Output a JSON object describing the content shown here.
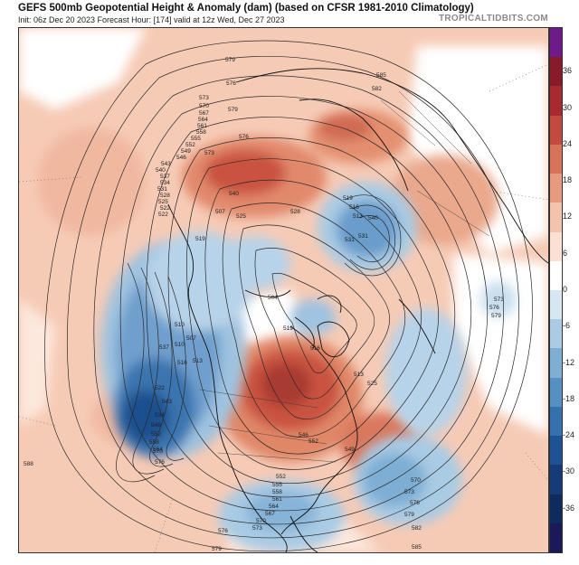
{
  "header": {
    "title": "GEFS 500mb Geopotential Height & Anomaly (dam) (based on CFSR 1981-2010 Climatology)",
    "subtitle": "Init: 06z Dec 20 2023   Forecast Hour: [174]   valid at 12z Wed, Dec 27 2023",
    "brand": "TROPICALTIDBITS.COM"
  },
  "colorbar": {
    "ticks": [
      "36",
      "30",
      "24",
      "18",
      "12",
      "6",
      "0",
      "-6",
      "-12",
      "-18",
      "-24",
      "-30",
      "-36"
    ],
    "colors": [
      "#6e1a8a",
      "#8a1a2a",
      "#a82a30",
      "#c24a3e",
      "#d8735a",
      "#e89a7e",
      "#f4c3ac",
      "#fbe1d3",
      "#ffffff",
      "#d6e7f2",
      "#aacbe3",
      "#7eaed4",
      "#5690c2",
      "#3471ad",
      "#1d5394",
      "#153c78",
      "#0f2a5c",
      "#1a1a5a"
    ]
  },
  "contour_labels": [
    {
      "text": "579"
    },
    {
      "text": "576"
    },
    {
      "text": "573"
    },
    {
      "text": "570"
    },
    {
      "text": "567"
    },
    {
      "text": "564"
    },
    {
      "text": "561"
    },
    {
      "text": "558"
    },
    {
      "text": "555"
    },
    {
      "text": "552"
    },
    {
      "text": "549"
    },
    {
      "text": "546"
    },
    {
      "text": "543"
    },
    {
      "text": "540"
    },
    {
      "text": "537"
    },
    {
      "text": "534"
    },
    {
      "text": "531"
    },
    {
      "text": "528"
    },
    {
      "text": "525"
    },
    {
      "text": "522"
    },
    {
      "text": "519"
    },
    {
      "text": "516"
    },
    {
      "text": "513"
    },
    {
      "text": "510"
    },
    {
      "text": "507"
    },
    {
      "text": "504"
    },
    {
      "text": "585"
    },
    {
      "text": "582"
    },
    {
      "text": "588"
    },
    {
      "text": "573"
    },
    {
      "text": "576"
    },
    {
      "text": "579"
    },
    {
      "text": "570"
    },
    {
      "text": "573"
    },
    {
      "text": "576"
    },
    {
      "text": "579"
    },
    {
      "text": "582"
    },
    {
      "text": "585"
    },
    {
      "text": "552"
    },
    {
      "text": "555"
    },
    {
      "text": "558"
    },
    {
      "text": "561"
    },
    {
      "text": "564"
    },
    {
      "text": "567"
    },
    {
      "text": "570"
    },
    {
      "text": "573"
    },
    {
      "text": "576"
    },
    {
      "text": "579"
    },
    {
      "text": "540"
    },
    {
      "text": "534"
    },
    {
      "text": "528"
    },
    {
      "text": "522"
    },
    {
      "text": "516"
    },
    {
      "text": "510"
    },
    {
      "text": "546"
    },
    {
      "text": "552"
    },
    {
      "text": "558"
    },
    {
      "text": "564"
    },
    {
      "text": "570"
    },
    {
      "text": "576"
    },
    {
      "text": "519"
    },
    {
      "text": "516"
    },
    {
      "text": "513"
    },
    {
      "text": "522"
    },
    {
      "text": "525"
    },
    {
      "text": "531"
    },
    {
      "text": "537"
    },
    {
      "text": "543"
    },
    {
      "text": "549"
    },
    {
      "text": "507"
    },
    {
      "text": "513"
    },
    {
      "text": "519"
    },
    {
      "text": "525"
    },
    {
      "text": "531"
    },
    {
      "text": "540"
    },
    {
      "text": "546"
    },
    {
      "text": "552"
    },
    {
      "text": "573"
    },
    {
      "text": "576"
    },
    {
      "text": "579"
    }
  ]
}
